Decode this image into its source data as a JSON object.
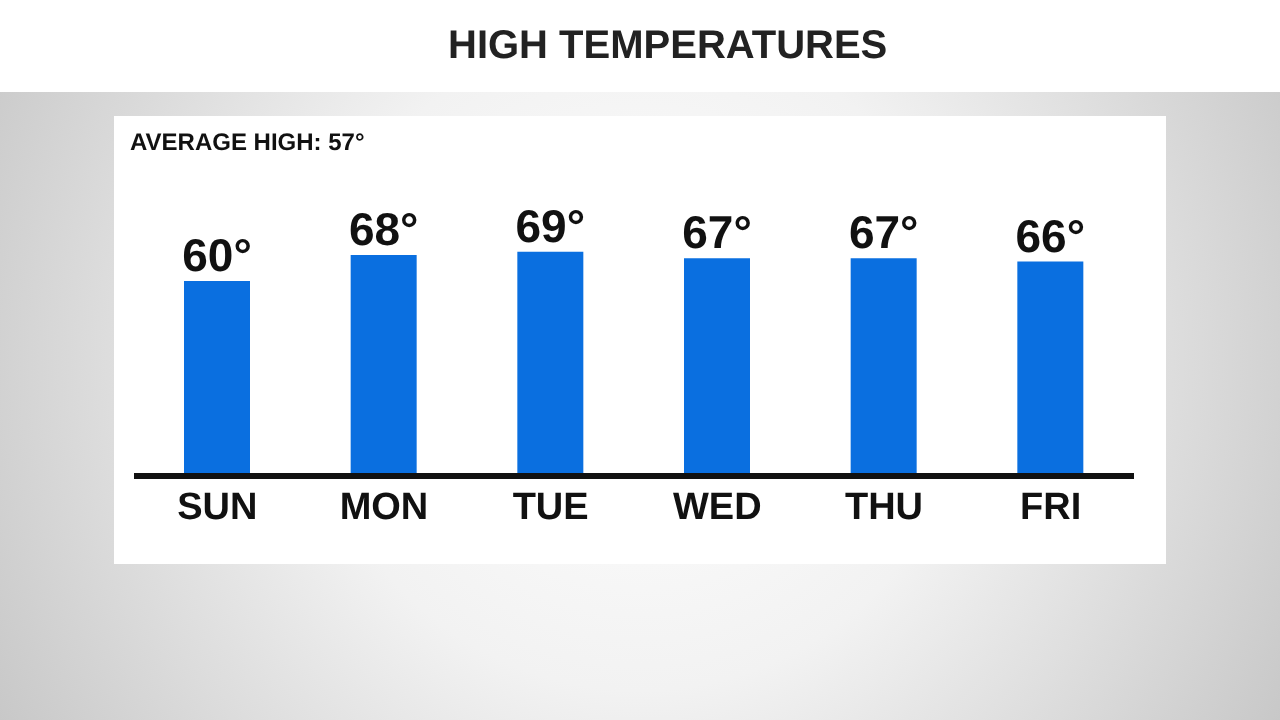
{
  "chart_data": {
    "type": "bar",
    "title": "HIGH TEMPERATURES",
    "annotations": [
      "AVERAGE HIGH: 57°"
    ],
    "categories": [
      "SUN",
      "MON",
      "TUE",
      "WED",
      "THU",
      "FRI"
    ],
    "values": [
      60,
      68,
      69,
      67,
      67,
      66
    ],
    "value_labels": [
      "60°",
      "68°",
      "69°",
      "67°",
      "67°",
      "66°"
    ],
    "color": "#0a6fe0",
    "grid": false,
    "legend": false
  }
}
